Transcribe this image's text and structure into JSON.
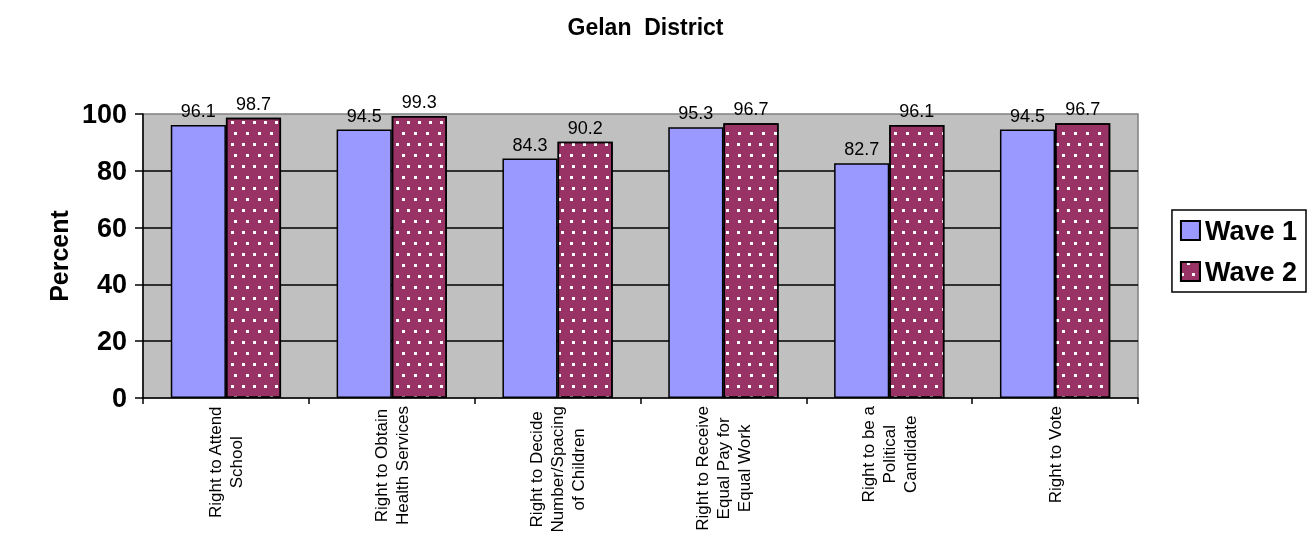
{
  "chart_data": {
    "type": "bar",
    "title": "Gelan  District",
    "ylabel": "Percent",
    "categories": [
      "Right to Attend School",
      "Right to Obtain Health Services",
      "Right to Decide Number/Spacing of Children",
      "Right to Receive Equal Pay for Equal Work",
      "Right to be a Political Candidate",
      "Right to Vote"
    ],
    "series": [
      {
        "name": "Wave 1",
        "color": "#9999ff",
        "values": [
          96.1,
          94.5,
          84.3,
          95.3,
          82.7,
          94.5
        ]
      },
      {
        "name": "Wave 2",
        "color": "#993366",
        "values": [
          98.7,
          99.3,
          90.2,
          96.7,
          96.1,
          96.7
        ]
      }
    ],
    "ylim": [
      0,
      100
    ],
    "yticks": [
      0,
      20,
      40,
      60,
      80,
      100
    ],
    "grid": "y",
    "legend": "right",
    "data_labels": true
  }
}
